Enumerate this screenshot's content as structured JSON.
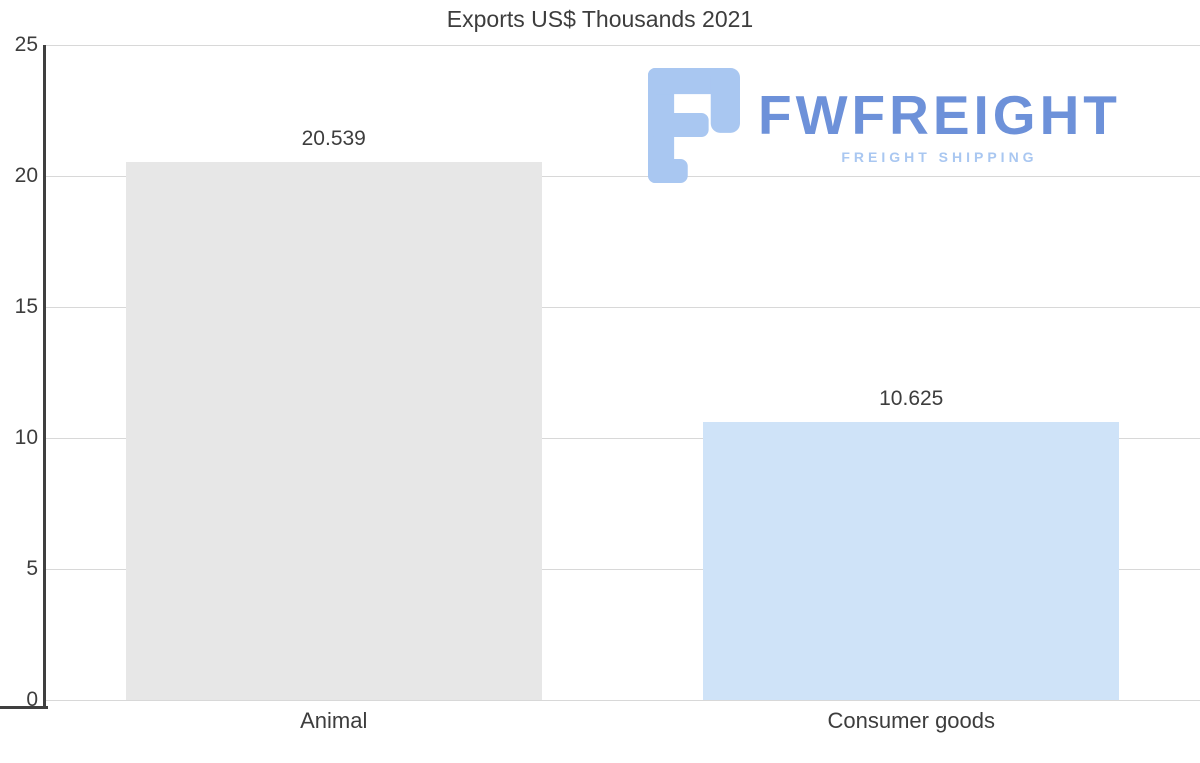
{
  "chart_data": {
    "type": "bar",
    "title": "Exports US$ Thousands 2021",
    "categories": [
      "Animal",
      "Consumer goods"
    ],
    "values": [
      20.539,
      10.625
    ],
    "value_labels": [
      "20.539",
      "10.625"
    ],
    "xlabel": "",
    "ylabel": "",
    "ylim": [
      0,
      25
    ],
    "yticks": [
      0,
      5,
      10,
      15,
      20,
      25
    ],
    "grid": true,
    "legend": false,
    "bar_colors": [
      "#e7e7e7",
      "#cfe3f8"
    ],
    "gridline_color": "#d8d8d8",
    "axis_color": "#3f3f3f",
    "label_color": "#3d3d3d"
  },
  "logo": {
    "title": "FWFREIGHT",
    "subtitle": "FREIGHT SHIPPING",
    "icon": "fwfreight-f-icon",
    "title_color": "#6d91d9",
    "subtitle_color": "#a9c7f1",
    "icon_color": "#a9c7f1"
  }
}
